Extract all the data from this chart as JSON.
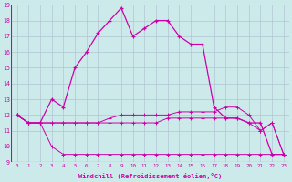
{
  "xlabel": "Windchill (Refroidissement éolien,°C)",
  "background_color": "#cceaea",
  "grid_color": "#aabbcc",
  "line_color": "#cc00aa",
  "xmin": 0,
  "xmax": 23,
  "ymin": 9,
  "ymax": 19,
  "hours": [
    0,
    1,
    2,
    3,
    4,
    5,
    6,
    7,
    8,
    9,
    10,
    11,
    12,
    13,
    14,
    15,
    16,
    17,
    18,
    19,
    20,
    21,
    22,
    23
  ],
  "curve_top": [
    12,
    11.5,
    11.5,
    13,
    12.5,
    15,
    16,
    17.2,
    18,
    18.8,
    17,
    17.5,
    18,
    18,
    17,
    16.5,
    16.5,
    12.5,
    11.8,
    11.8,
    11.5,
    11.5,
    9.5,
    9.5
  ],
  "curve_mid1": [
    12,
    11.5,
    11.5,
    11.5,
    11.5,
    11.5,
    11.5,
    11.5,
    11.8,
    12,
    12,
    12,
    12,
    12,
    12.2,
    12.2,
    12.2,
    12.2,
    12.5,
    12.5,
    12,
    11,
    11.5,
    9.5
  ],
  "curve_mid2": [
    12,
    11.5,
    11.5,
    11.5,
    11.5,
    11.5,
    11.5,
    11.5,
    11.5,
    11.5,
    11.5,
    11.5,
    11.5,
    11.8,
    11.8,
    11.8,
    11.8,
    11.8,
    11.8,
    11.8,
    11.5,
    11,
    11.5,
    9.5
  ],
  "curve_bot": [
    12,
    11.5,
    11.5,
    10,
    9.5,
    9.5,
    9.5,
    9.5,
    9.5,
    9.5,
    9.5,
    9.5,
    9.5,
    9.5,
    9.5,
    9.5,
    9.5,
    9.5,
    9.5,
    9.5,
    9.5,
    9.5,
    9.5,
    9.5
  ]
}
